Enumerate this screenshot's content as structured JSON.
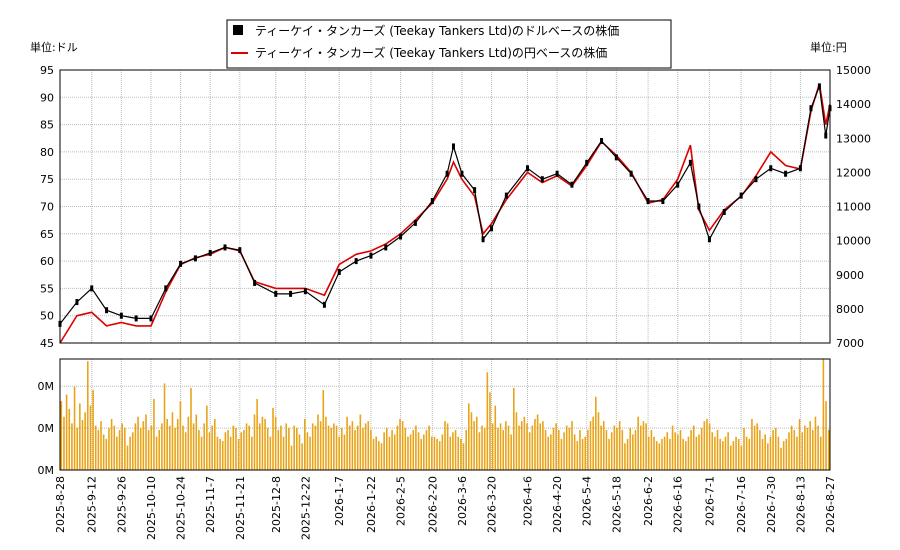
{
  "chart_data": {
    "type": "line",
    "legend": {
      "placement": "top-center",
      "entries": [
        {
          "label": "ティーケイ・タンカーズ (Teekay Tankers Ltd)のドルベースの株価",
          "color": "#000000",
          "marker": "black-square"
        },
        {
          "label": "ティーケイ・タンカーズ (Teekay Tankers Ltd)の円ベースの株価",
          "color": "#dd0000",
          "marker": "red-line"
        }
      ]
    },
    "left_unit": "単位:ドル",
    "right_unit": "単位:円",
    "grid": true,
    "price_panel": {
      "ylim_left": [
        45,
        95
      ],
      "ylim_right": [
        7000,
        15000
      ],
      "yticks_left": [
        "45",
        "50",
        "55",
        "60",
        "65",
        "70",
        "75",
        "80",
        "85",
        "90",
        "95"
      ],
      "yticks_right": [
        "7000",
        "8000",
        "9000",
        "10000",
        "11000",
        "12000",
        "13000",
        "14000",
        "15000"
      ]
    },
    "volume_panel": {
      "yticks": [
        "0M",
        "0M",
        "0M"
      ],
      "bar_color": "#e8a317"
    },
    "x_ticks": [
      "2025-8-28",
      "2025-9-12",
      "2025-9-26",
      "2025-10-10",
      "2025-10-24",
      "2025-11-7",
      "2025-11-21",
      "2025-12-8",
      "2025-12-22",
      "2026-1-7",
      "2026-1-22",
      "2026-2-5",
      "2026-2-20",
      "2026-3-6",
      "2026-3-20",
      "2026-4-6",
      "2026-4-20",
      "2026-5-4",
      "2026-5-18",
      "2026-6-2",
      "2026-6-16",
      "2026-7-1",
      "2026-7-16",
      "2026-7-30",
      "2026-8-13",
      "2026-8-27"
    ],
    "series": [
      {
        "name": "ティーケイ・タンカーズ (Teekay Tankers Ltd)のドルベースの株価",
        "color": "#000000",
        "x": [
          "2025-8-28",
          "2025-9-5",
          "2025-9-12",
          "2025-9-19",
          "2025-9-26",
          "2025-10-3",
          "2025-10-10",
          "2025-10-17",
          "2025-10-24",
          "2025-10-31",
          "2025-11-7",
          "2025-11-14",
          "2025-11-21",
          "2025-11-28",
          "2025-12-8",
          "2025-12-15",
          "2025-12-22",
          "2025-12-31",
          "2026-1-7",
          "2026-1-15",
          "2026-1-22",
          "2026-1-29",
          "2026-2-5",
          "2026-2-12",
          "2026-2-20",
          "2026-2-27",
          "2026-3-2",
          "2026-3-6",
          "2026-3-12",
          "2026-3-16",
          "2026-3-20",
          "2026-3-27",
          "2026-4-6",
          "2026-4-13",
          "2026-4-20",
          "2026-4-27",
          "2026-5-4",
          "2026-5-11",
          "2026-5-18",
          "2026-5-25",
          "2026-6-2",
          "2026-6-9",
          "2026-6-16",
          "2026-6-22",
          "2026-6-26",
          "2026-7-1",
          "2026-7-8",
          "2026-7-16",
          "2026-7-23",
          "2026-7-30",
          "2026-8-6",
          "2026-8-13",
          "2026-8-18",
          "2026-8-22",
          "2026-8-25",
          "2026-8-27"
        ],
        "values": [
          48.5,
          52.5,
          55,
          51,
          50,
          49.5,
          49.5,
          55,
          59.5,
          60.5,
          61.5,
          62.5,
          62,
          56,
          54,
          54,
          54.5,
          52,
          58,
          60,
          61,
          62.5,
          64.5,
          67,
          71,
          76,
          81,
          76,
          73,
          64,
          66,
          72,
          77,
          75,
          76,
          74,
          78,
          82,
          79,
          76,
          71,
          71,
          74,
          78,
          70,
          64,
          69,
          72,
          75,
          77,
          76,
          77,
          88,
          92,
          83,
          88
        ]
      },
      {
        "name": "ティーケイ・タンカーズ (Teekay Tankers Ltd)の円ベースの株価",
        "color": "#dd0000",
        "x": [
          "2025-8-28",
          "2025-9-5",
          "2025-9-12",
          "2025-9-19",
          "2025-9-26",
          "2025-10-3",
          "2025-10-10",
          "2025-10-17",
          "2025-10-24",
          "2025-10-31",
          "2025-11-7",
          "2025-11-14",
          "2025-11-21",
          "2025-11-28",
          "2025-12-8",
          "2025-12-15",
          "2025-12-22",
          "2025-12-31",
          "2026-1-7",
          "2026-1-15",
          "2026-1-22",
          "2026-1-29",
          "2026-2-5",
          "2026-2-12",
          "2026-2-20",
          "2026-2-27",
          "2026-3-2",
          "2026-3-6",
          "2026-3-12",
          "2026-3-16",
          "2026-3-20",
          "2026-3-27",
          "2026-4-6",
          "2026-4-13",
          "2026-4-20",
          "2026-4-27",
          "2026-5-4",
          "2026-5-11",
          "2026-5-18",
          "2026-5-25",
          "2026-6-2",
          "2026-6-9",
          "2026-6-16",
          "2026-6-22",
          "2026-6-26",
          "2026-7-1",
          "2026-7-8",
          "2026-7-16",
          "2026-7-23",
          "2026-7-30",
          "2026-8-6",
          "2026-8-13",
          "2026-8-18",
          "2026-8-22",
          "2026-8-25",
          "2026-8-27"
        ],
        "values": [
          7000,
          7800,
          7900,
          7500,
          7600,
          7500,
          7500,
          8500,
          9300,
          9500,
          9600,
          9800,
          9700,
          8800,
          8600,
          8600,
          8600,
          8400,
          9300,
          9600,
          9700,
          9900,
          10200,
          10600,
          11100,
          11800,
          12300,
          11800,
          11300,
          10200,
          10500,
          11200,
          12000,
          11700,
          11900,
          11600,
          12200,
          12900,
          12500,
          12000,
          11100,
          11200,
          11800,
          12800,
          10900,
          10300,
          10900,
          11300,
          11900,
          12600,
          12200,
          12100,
          13800,
          14600,
          13400,
          14000
        ]
      }
    ],
    "volume": [
      62,
      48,
      68,
      55,
      42,
      75,
      38,
      60,
      45,
      52,
      98,
      58,
      72,
      40,
      36,
      44,
      32,
      28,
      38,
      46,
      40,
      30,
      36,
      42,
      38,
      22,
      30,
      34,
      42,
      48,
      38,
      44,
      50,
      36,
      40,
      64,
      30,
      36,
      42,
      78,
      46,
      40,
      52,
      38,
      46,
      62,
      40,
      34,
      48,
      74,
      42,
      50,
      36,
      30,
      42,
      58,
      34,
      40,
      46,
      30,
      28,
      26,
      34,
      36,
      30,
      40,
      38,
      28,
      34,
      36,
      42,
      40,
      30,
      50,
      64,
      42,
      48,
      46,
      38,
      30,
      56,
      48,
      36,
      40,
      30,
      42,
      38,
      22,
      40,
      38,
      32,
      24,
      46,
      34,
      30,
      42,
      40,
      50,
      44,
      72,
      48,
      40,
      38,
      42,
      40,
      30,
      38,
      32,
      48,
      40,
      44,
      36,
      40,
      50,
      38,
      42,
      44,
      36,
      28,
      30,
      26,
      24,
      34,
      38,
      30,
      36,
      32,
      40,
      46,
      44,
      38,
      30,
      32,
      36,
      40,
      34,
      28,
      32,
      36,
      40,
      30,
      30,
      28,
      26,
      32,
      44,
      42,
      30,
      34,
      36,
      30,
      28,
      24,
      36,
      60,
      52,
      44,
      48,
      34,
      40,
      38,
      88,
      70,
      42,
      58,
      38,
      42,
      36,
      44,
      40,
      32,
      74,
      52,
      40,
      44,
      48,
      42,
      34,
      40,
      46,
      50,
      42,
      44,
      36,
      30,
      32,
      38,
      42,
      36,
      28,
      34,
      40,
      38,
      44,
      32,
      26,
      36,
      28,
      30,
      36,
      44,
      48,
      66,
      52,
      40,
      44,
      36,
      28,
      34,
      40,
      38,
      44,
      36,
      24,
      28,
      38,
      32,
      36,
      48,
      40,
      44,
      42,
      30,
      36,
      30,
      26,
      24,
      28,
      30,
      34,
      28,
      40,
      34,
      32,
      36,
      28,
      26,
      30,
      36,
      40,
      30,
      32,
      38,
      44,
      46,
      42,
      34,
      30,
      36,
      28,
      26,
      30,
      34,
      22,
      26,
      30,
      28,
      22,
      38,
      30,
      28,
      46,
      40,
      42,
      36,
      28,
      32,
      24,
      30,
      36,
      38,
      30,
      20,
      26,
      28,
      34,
      40,
      36,
      30,
      46,
      34,
      40,
      38,
      44,
      36,
      48,
      40,
      30,
      100,
      62,
      36
    ]
  }
}
